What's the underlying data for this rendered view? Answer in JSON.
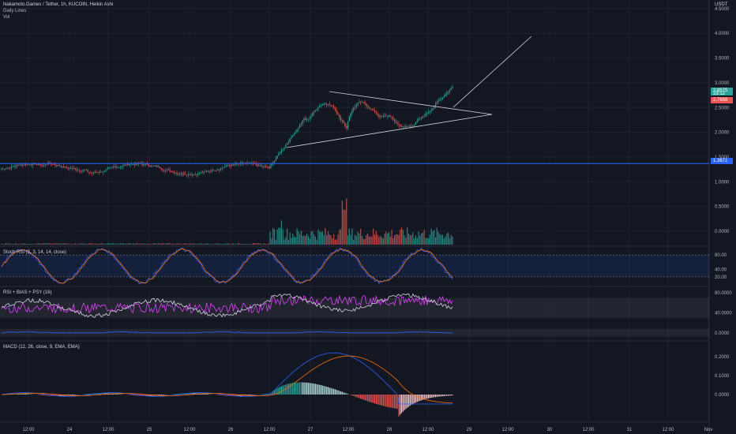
{
  "header": {
    "symbol_line": "Nakamoto.Games / Tether, 1h, KUCOIN, Heikin Ashi",
    "line2": "Daily Lines",
    "line3": "Vol"
  },
  "price_axis": {
    "currency": "USDT",
    "ticks": [
      "4.5000",
      "4.0000",
      "3.5000",
      "3.0000",
      "2.5000",
      "2.0000",
      "1.5000",
      "1.0000",
      "0.5000",
      "0.0000"
    ],
    "badges": [
      {
        "label": "2.8575",
        "sub": "23:12",
        "color": "#26a69a"
      },
      {
        "label": "2.7656",
        "color": "#ef5350"
      },
      {
        "label": "1.3671",
        "color": "#2962ff"
      }
    ]
  },
  "panes": {
    "stoch": {
      "title": "Stoch RSI (3, 3, 14, 14, close)",
      "ticks": [
        "80.00",
        "40.00",
        "20.00"
      ]
    },
    "rsi": {
      "title": "RSI + BIAS + PSY (16)",
      "ticks": [
        "80.0000",
        "40.0000",
        "0.0000"
      ]
    },
    "macd": {
      "title": "MACD (12, 26, close, 9, EMA, EMA)",
      "ticks": [
        "0.2000",
        "0.1000",
        "0.0000"
      ]
    }
  },
  "time_axis": [
    "12:00",
    "24",
    "12:00",
    "25",
    "12:00",
    "26",
    "12:00",
    "27",
    "12:00",
    "28",
    "12:00",
    "29",
    "12:00",
    "30",
    "12:00",
    "31",
    "12:00",
    "Nov"
  ],
  "colors": {
    "up": "#26a69a",
    "down": "#ef5350",
    "hline": "#2962ff",
    "signal": "#ff6d00",
    "pink": "#e040fb"
  },
  "chart_data": {
    "type": "candlestick",
    "support_level": 1.3671,
    "price_range": [
      0.0,
      4.5
    ],
    "start_price": 1.25,
    "breakout_start_bar": 190,
    "total_bars": 320
  }
}
